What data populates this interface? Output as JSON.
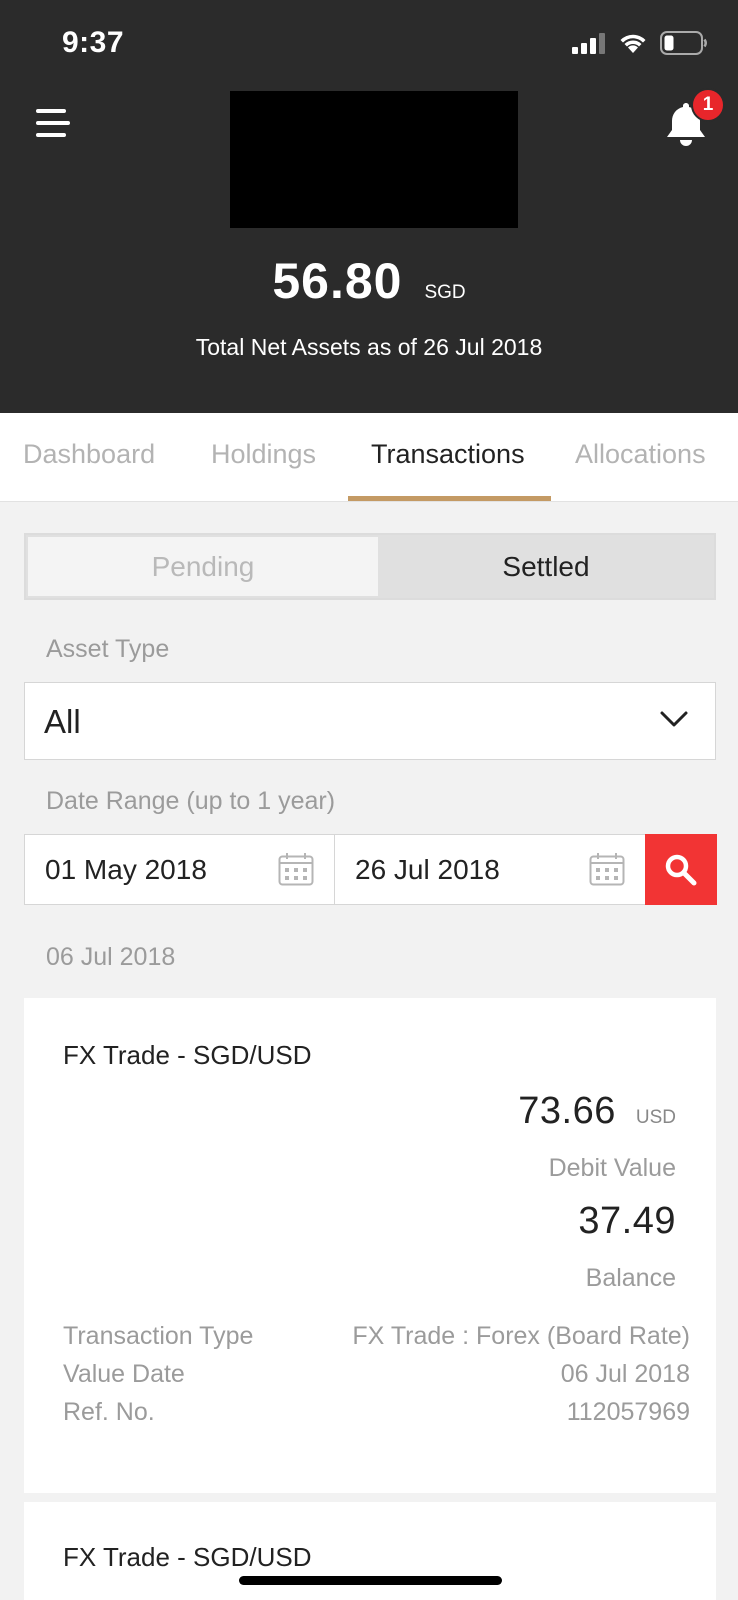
{
  "status_bar": {
    "time": "9:37"
  },
  "header": {
    "notification_count": "1",
    "net_assets_value": "56.80",
    "net_assets_currency": "SGD",
    "net_assets_caption": "Total Net Assets as of 26 Jul 2018"
  },
  "tabs": [
    {
      "label": "Dashboard",
      "active": false
    },
    {
      "label": "Holdings",
      "active": false
    },
    {
      "label": "Transactions",
      "active": true
    },
    {
      "label": "Allocations",
      "active": false
    }
  ],
  "segment": {
    "pending": "Pending",
    "settled": "Settled",
    "selected": "Settled"
  },
  "filters": {
    "asset_type_label": "Asset Type",
    "asset_type_value": "All",
    "date_range_label": "Date Range (up to 1 year)",
    "date_from": "01 May 2018",
    "date_to": "26 Jul 2018"
  },
  "transactions": {
    "group_date": "06 Jul 2018",
    "items": [
      {
        "title": "FX Trade - SGD/USD",
        "debit_value": "73.66",
        "debit_currency": "USD",
        "debit_label": "Debit Value",
        "balance": "37.49",
        "balance_label": "Balance",
        "details": [
          {
            "label": "Transaction Type",
            "value": "FX Trade : Forex (Board Rate)"
          },
          {
            "label": "Value Date",
            "value": "06 Jul 2018"
          },
          {
            "label": "Ref. No.",
            "value": "112057969"
          }
        ]
      },
      {
        "title": "FX Trade - SGD/USD"
      }
    ]
  },
  "colors": {
    "header_bg": "#2b2b2b",
    "accent_underline": "#c49a64",
    "search_button": "#f23434",
    "badge": "#e8262b"
  }
}
